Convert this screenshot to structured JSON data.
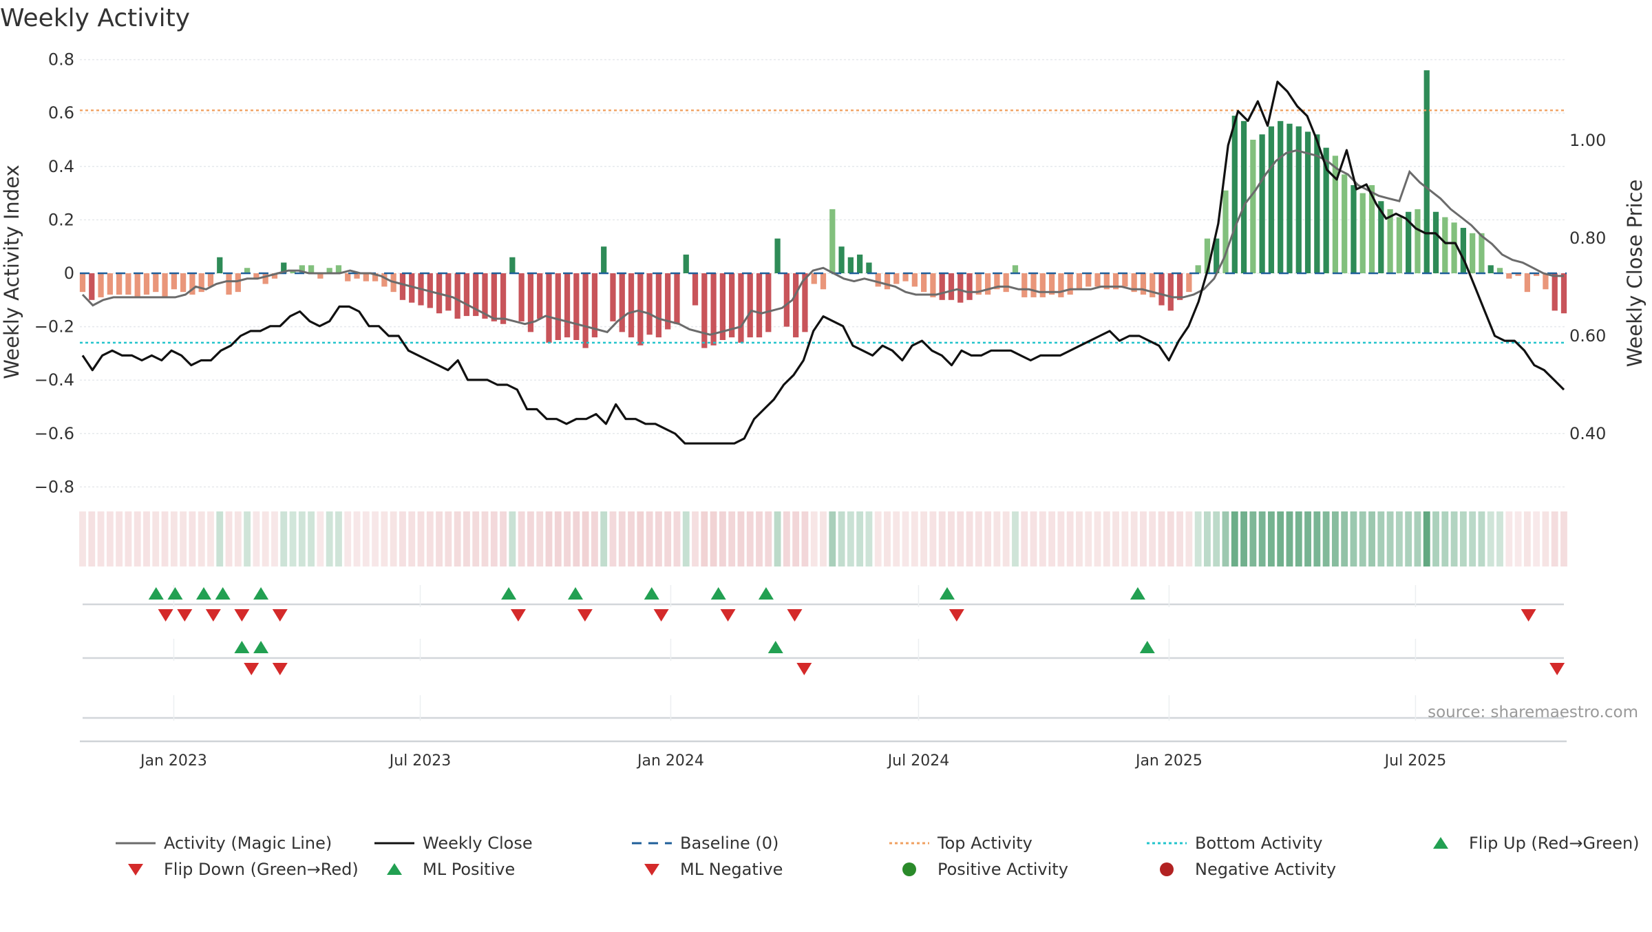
{
  "colors": {
    "pos_strong": "#2e8b57",
    "pos_light": "#82c07d",
    "neg_strong": "#c8545a",
    "neg_light": "#e9967a",
    "close_line": "#111111",
    "magic_line": "#6b6b6b",
    "baseline": "#1f5f99",
    "top_line": "#f0a060",
    "bottom_line": "#22c4cc",
    "flip_up": "#22a052",
    "flip_down": "#d42a2a",
    "grid": "#e6e9ec",
    "text": "#333333"
  },
  "chart_data": {
    "type": "bar",
    "title": "Weekly Activity",
    "ylabel": "Weekly Activity Index",
    "y2label": "Weekly Close Price",
    "source": "source: sharemaestro.com",
    "ylim": [
      -0.88,
      0.8
    ],
    "yticks": [
      "0.8",
      "0.6",
      "0.4",
      "0.2",
      "0",
      "−0.2",
      "−0.4",
      "−0.6",
      "−0.8"
    ],
    "y2lim": [
      0.23,
      1.23
    ],
    "y2ticks": [
      "1.00",
      "0.80",
      "0.60",
      "0.40"
    ],
    "x_start": "2022-10-24",
    "x_end": "2025-10-20",
    "xticks": [
      "Jan 2023",
      "Jul 2023",
      "Jan 2024",
      "Jul 2024",
      "Jan 2025",
      "Jul 2025"
    ],
    "top_activity": 0.61,
    "bottom_activity": -0.26,
    "baseline": 0,
    "activity": [
      -0.07,
      -0.1,
      -0.09,
      -0.08,
      -0.08,
      -0.08,
      -0.09,
      -0.08,
      -0.07,
      -0.09,
      -0.06,
      -0.07,
      -0.08,
      -0.07,
      -0.05,
      0.06,
      -0.08,
      -0.07,
      0.02,
      -0.02,
      -0.04,
      -0.02,
      0.04,
      0.01,
      0.03,
      0.03,
      -0.02,
      0.02,
      0.03,
      -0.03,
      -0.02,
      -0.03,
      -0.03,
      -0.05,
      -0.07,
      -0.1,
      -0.11,
      -0.12,
      -0.13,
      -0.15,
      -0.14,
      -0.17,
      -0.16,
      -0.16,
      -0.17,
      -0.18,
      -0.19,
      0.06,
      -0.18,
      -0.22,
      -0.17,
      -0.26,
      -0.25,
      -0.24,
      -0.25,
      -0.28,
      -0.24,
      0.1,
      -0.18,
      -0.22,
      -0.24,
      -0.27,
      -0.23,
      -0.24,
      -0.21,
      -0.19,
      0.07,
      -0.12,
      -0.28,
      -0.27,
      -0.25,
      -0.24,
      -0.26,
      -0.24,
      -0.24,
      -0.22,
      0.13,
      -0.2,
      -0.24,
      -0.22,
      -0.04,
      -0.06,
      0.24,
      0.1,
      0.06,
      0.07,
      0.04,
      -0.05,
      -0.06,
      -0.04,
      -0.03,
      -0.05,
      -0.07,
      -0.09,
      -0.1,
      -0.1,
      -0.11,
      -0.1,
      -0.08,
      -0.08,
      -0.06,
      -0.07,
      0.03,
      -0.09,
      -0.09,
      -0.09,
      -0.08,
      -0.09,
      -0.08,
      -0.06,
      -0.05,
      -0.05,
      -0.06,
      -0.06,
      -0.05,
      -0.07,
      -0.08,
      -0.09,
      -0.12,
      -0.14,
      -0.1,
      -0.07,
      0.03,
      0.13,
      0.13,
      0.31,
      0.59,
      0.57,
      0.5,
      0.52,
      0.55,
      0.57,
      0.56,
      0.55,
      0.53,
      0.52,
      0.47,
      0.44,
      0.37,
      0.33,
      0.3,
      0.33,
      0.27,
      0.24,
      0.21,
      0.23,
      0.24,
      0.76,
      0.23,
      0.21,
      0.19,
      0.17,
      0.15,
      0.15,
      0.03,
      0.02,
      -0.02,
      -0.01,
      -0.07,
      -0.01,
      -0.06,
      -0.14,
      -0.15
    ],
    "close": [
      0.56,
      0.53,
      0.56,
      0.57,
      0.56,
      0.56,
      0.55,
      0.56,
      0.55,
      0.57,
      0.56,
      0.54,
      0.55,
      0.55,
      0.57,
      0.58,
      0.6,
      0.61,
      0.61,
      0.62,
      0.62,
      0.64,
      0.65,
      0.63,
      0.62,
      0.63,
      0.66,
      0.66,
      0.65,
      0.62,
      0.62,
      0.6,
      0.6,
      0.57,
      0.56,
      0.55,
      0.54,
      0.53,
      0.55,
      0.51,
      0.51,
      0.51,
      0.5,
      0.5,
      0.49,
      0.45,
      0.45,
      0.43,
      0.43,
      0.42,
      0.43,
      0.43,
      0.44,
      0.42,
      0.46,
      0.43,
      0.43,
      0.42,
      0.42,
      0.41,
      0.4,
      0.38,
      0.38,
      0.38,
      0.38,
      0.38,
      0.38,
      0.39,
      0.43,
      0.45,
      0.47,
      0.5,
      0.52,
      0.55,
      0.61,
      0.64,
      0.63,
      0.62,
      0.58,
      0.57,
      0.56,
      0.58,
      0.57,
      0.55,
      0.58,
      0.59,
      0.57,
      0.56,
      0.54,
      0.57,
      0.56,
      0.56,
      0.57,
      0.57,
      0.57,
      0.56,
      0.55,
      0.56,
      0.56,
      0.56,
      0.57,
      0.58,
      0.59,
      0.6,
      0.61,
      0.59,
      0.6,
      0.6,
      0.59,
      0.58,
      0.55,
      0.59,
      0.62,
      0.67,
      0.74,
      0.83,
      0.99,
      1.06,
      1.04,
      1.08,
      1.03,
      1.12,
      1.1,
      1.07,
      1.05,
      1.0,
      0.94,
      0.92,
      0.98,
      0.9,
      0.91,
      0.87,
      0.84,
      0.85,
      0.84,
      0.82,
      0.81,
      0.81,
      0.79,
      0.79,
      0.75,
      0.7,
      0.65,
      0.6,
      0.59,
      0.59,
      0.57,
      0.54,
      0.53,
      0.51,
      0.49
    ],
    "magic_line": [
      -0.08,
      -0.12,
      -0.1,
      -0.09,
      -0.09,
      -0.09,
      -0.09,
      -0.09,
      -0.09,
      -0.09,
      -0.08,
      -0.05,
      -0.06,
      -0.04,
      -0.03,
      -0.03,
      -0.02,
      -0.02,
      -0.01,
      0,
      0.01,
      0.01,
      0,
      0,
      0,
      0,
      0.01,
      0,
      0,
      -0.01,
      -0.03,
      -0.04,
      -0.05,
      -0.06,
      -0.07,
      -0.08,
      -0.09,
      -0.11,
      -0.13,
      -0.15,
      -0.17,
      -0.17,
      -0.18,
      -0.19,
      -0.18,
      -0.16,
      -0.17,
      -0.18,
      -0.19,
      -0.2,
      -0.21,
      -0.22,
      -0.18,
      -0.15,
      -0.14,
      -0.15,
      -0.17,
      -0.18,
      -0.19,
      -0.21,
      -0.22,
      -0.23,
      -0.22,
      -0.21,
      -0.2,
      -0.14,
      -0.15,
      -0.14,
      -0.13,
      -0.1,
      -0.03,
      0.01,
      0.02,
      0,
      -0.02,
      -0.03,
      -0.02,
      -0.03,
      -0.04,
      -0.05,
      -0.07,
      -0.08,
      -0.08,
      -0.08,
      -0.07,
      -0.06,
      -0.07,
      -0.07,
      -0.06,
      -0.05,
      -0.05,
      -0.06,
      -0.06,
      -0.07,
      -0.07,
      -0.07,
      -0.06,
      -0.06,
      -0.06,
      -0.05,
      -0.05,
      -0.05,
      -0.06,
      -0.06,
      -0.07,
      -0.08,
      -0.09,
      -0.09,
      -0.08,
      -0.06,
      -0.02,
      0.06,
      0.17,
      0.26,
      0.31,
      0.37,
      0.42,
      0.45,
      0.46,
      0.45,
      0.44,
      0.42,
      0.39,
      0.37,
      0.33,
      0.31,
      0.29,
      0.28,
      0.27,
      0.38,
      0.34,
      0.31,
      0.28,
      0.24,
      0.21,
      0.18,
      0.14,
      0.11,
      0.07,
      0.05,
      0.04,
      0.02,
      0.0,
      -0.01,
      -0.01
    ],
    "flip_up": [
      "2022-12-19",
      "2023-01-02",
      "2023-01-23",
      "2023-02-06",
      "2023-03-06",
      "2023-09-04",
      "2023-10-23",
      "2023-12-18",
      "2024-02-05",
      "2024-03-11",
      "2024-07-22",
      "2024-12-09"
    ],
    "flip_down": [
      "2022-12-26",
      "2023-01-09",
      "2023-01-30",
      "2023-02-20",
      "2023-03-20",
      "2023-09-11",
      "2023-10-30",
      "2023-12-25",
      "2024-02-12",
      "2024-04-01",
      "2024-07-29",
      "2025-09-22"
    ],
    "ml_positive": [
      "2023-02-20",
      "2023-03-06",
      "2024-03-18",
      "2024-12-16"
    ],
    "ml_negative": [
      "2023-02-27",
      "2023-03-20",
      "2024-04-08",
      "2025-10-13"
    ]
  },
  "legend": [
    {
      "label": "Activity (Magic Line)",
      "symbol": "line-grey"
    },
    {
      "label": "Weekly Close",
      "symbol": "line-black"
    },
    {
      "label": "Baseline (0)",
      "symbol": "dash-blue"
    },
    {
      "label": "Top Activity",
      "symbol": "dot-orange"
    },
    {
      "label": "Bottom Activity",
      "symbol": "dot-cyan"
    },
    {
      "label": "Flip Up (Red→Green)",
      "symbol": "tri-up"
    },
    {
      "label": "Flip Down (Green→Red)",
      "symbol": "tri-down"
    },
    {
      "label": "ML Positive",
      "symbol": "tri-up"
    },
    {
      "label": "ML Negative",
      "symbol": "tri-down"
    },
    {
      "label": "Positive Activity",
      "symbol": "circle-green"
    },
    {
      "label": "Negative Activity",
      "symbol": "circle-red"
    }
  ]
}
